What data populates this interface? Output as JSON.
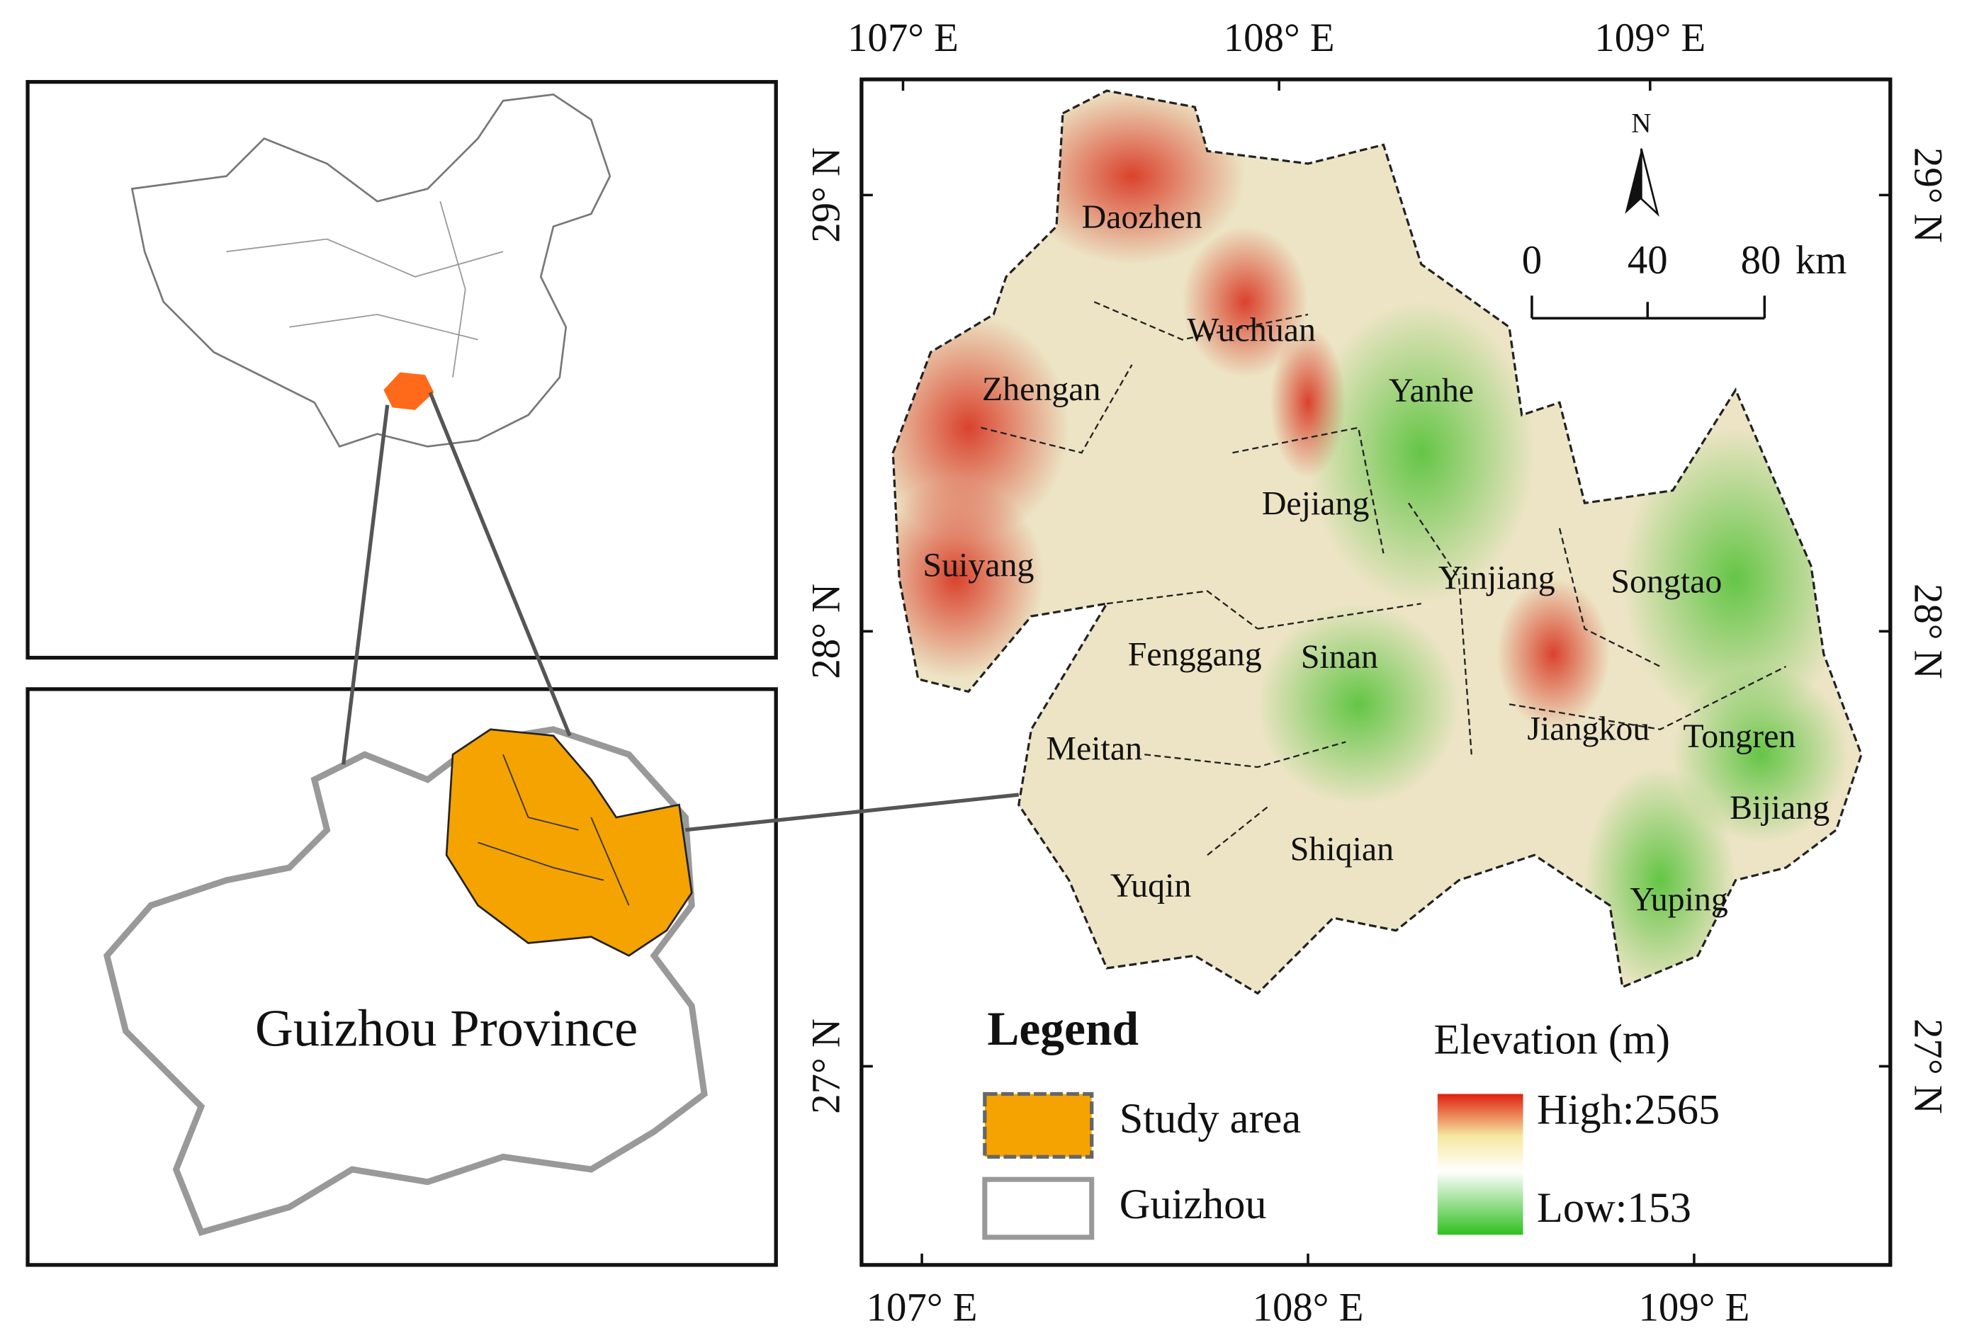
{
  "top_axis_labels": [
    "107° E",
    "108° E",
    "109° E"
  ],
  "bottom_axis_labels": [
    "107° E",
    "108° E",
    "109° E"
  ],
  "left_axis_labels": [
    "29° N",
    "28° N",
    "27° N"
  ],
  "right_axis_labels": [
    "29° N",
    "28° N",
    "27° N"
  ],
  "counties": [
    "Daozhen",
    "Wuchuan",
    "Zhengan",
    "Yanhe",
    "Dejiang",
    "Suiyang",
    "Yinjiang",
    "Songtao",
    "Fenggang",
    "Sinan",
    "Jiangkou",
    "Meitan",
    "Tongren",
    "Bijiang",
    "Shiqian",
    "Yuqin",
    "Yuping"
  ],
  "inset_label": "Guizhou Province",
  "north_arrow": "N",
  "scale_bar": {
    "ticks": [
      "0",
      "40",
      "80"
    ],
    "unit": "km"
  },
  "legend": {
    "title": "Legend",
    "items": [
      "Study area",
      "Guizhou"
    ],
    "elevation_title": "Elevation (m)",
    "high": "High:2565",
    "low": "Low:153"
  }
}
